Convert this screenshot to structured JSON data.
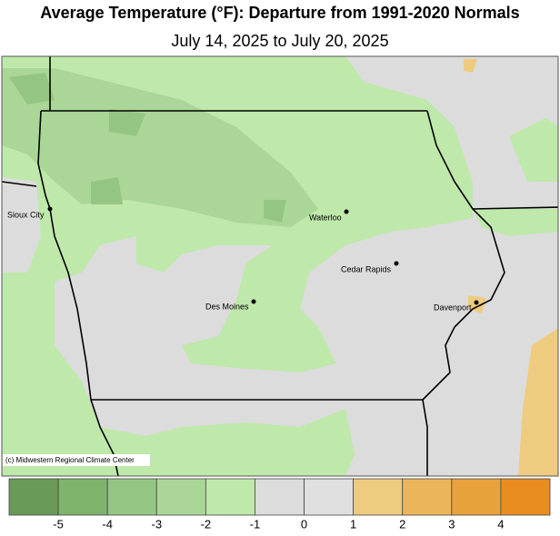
{
  "header": {
    "title": "Average Temperature (°F): Departure from 1991-2020 Normals",
    "subtitle": "July 14, 2025 to July 20, 2025"
  },
  "map": {
    "cities": [
      {
        "label": "Sioux City"
      },
      {
        "label": "Waterloo"
      },
      {
        "label": "Cedar Rapids"
      },
      {
        "label": "Des Moines"
      },
      {
        "label": "Davenport"
      }
    ],
    "credit": "(c) Midwestern Regional Climate Center"
  },
  "legend": {
    "colors": [
      "#6a9a58",
      "#80b36c",
      "#95c583",
      "#aad797",
      "#bfe8ab",
      "#dcdcdc",
      "#e0e0e0",
      "#efcb80",
      "#ebb65b",
      "#e8a23b",
      "#e98d21"
    ],
    "ticks": [
      -5,
      -4,
      -3,
      -2,
      -1,
      0,
      1,
      2,
      3,
      4
    ]
  }
}
